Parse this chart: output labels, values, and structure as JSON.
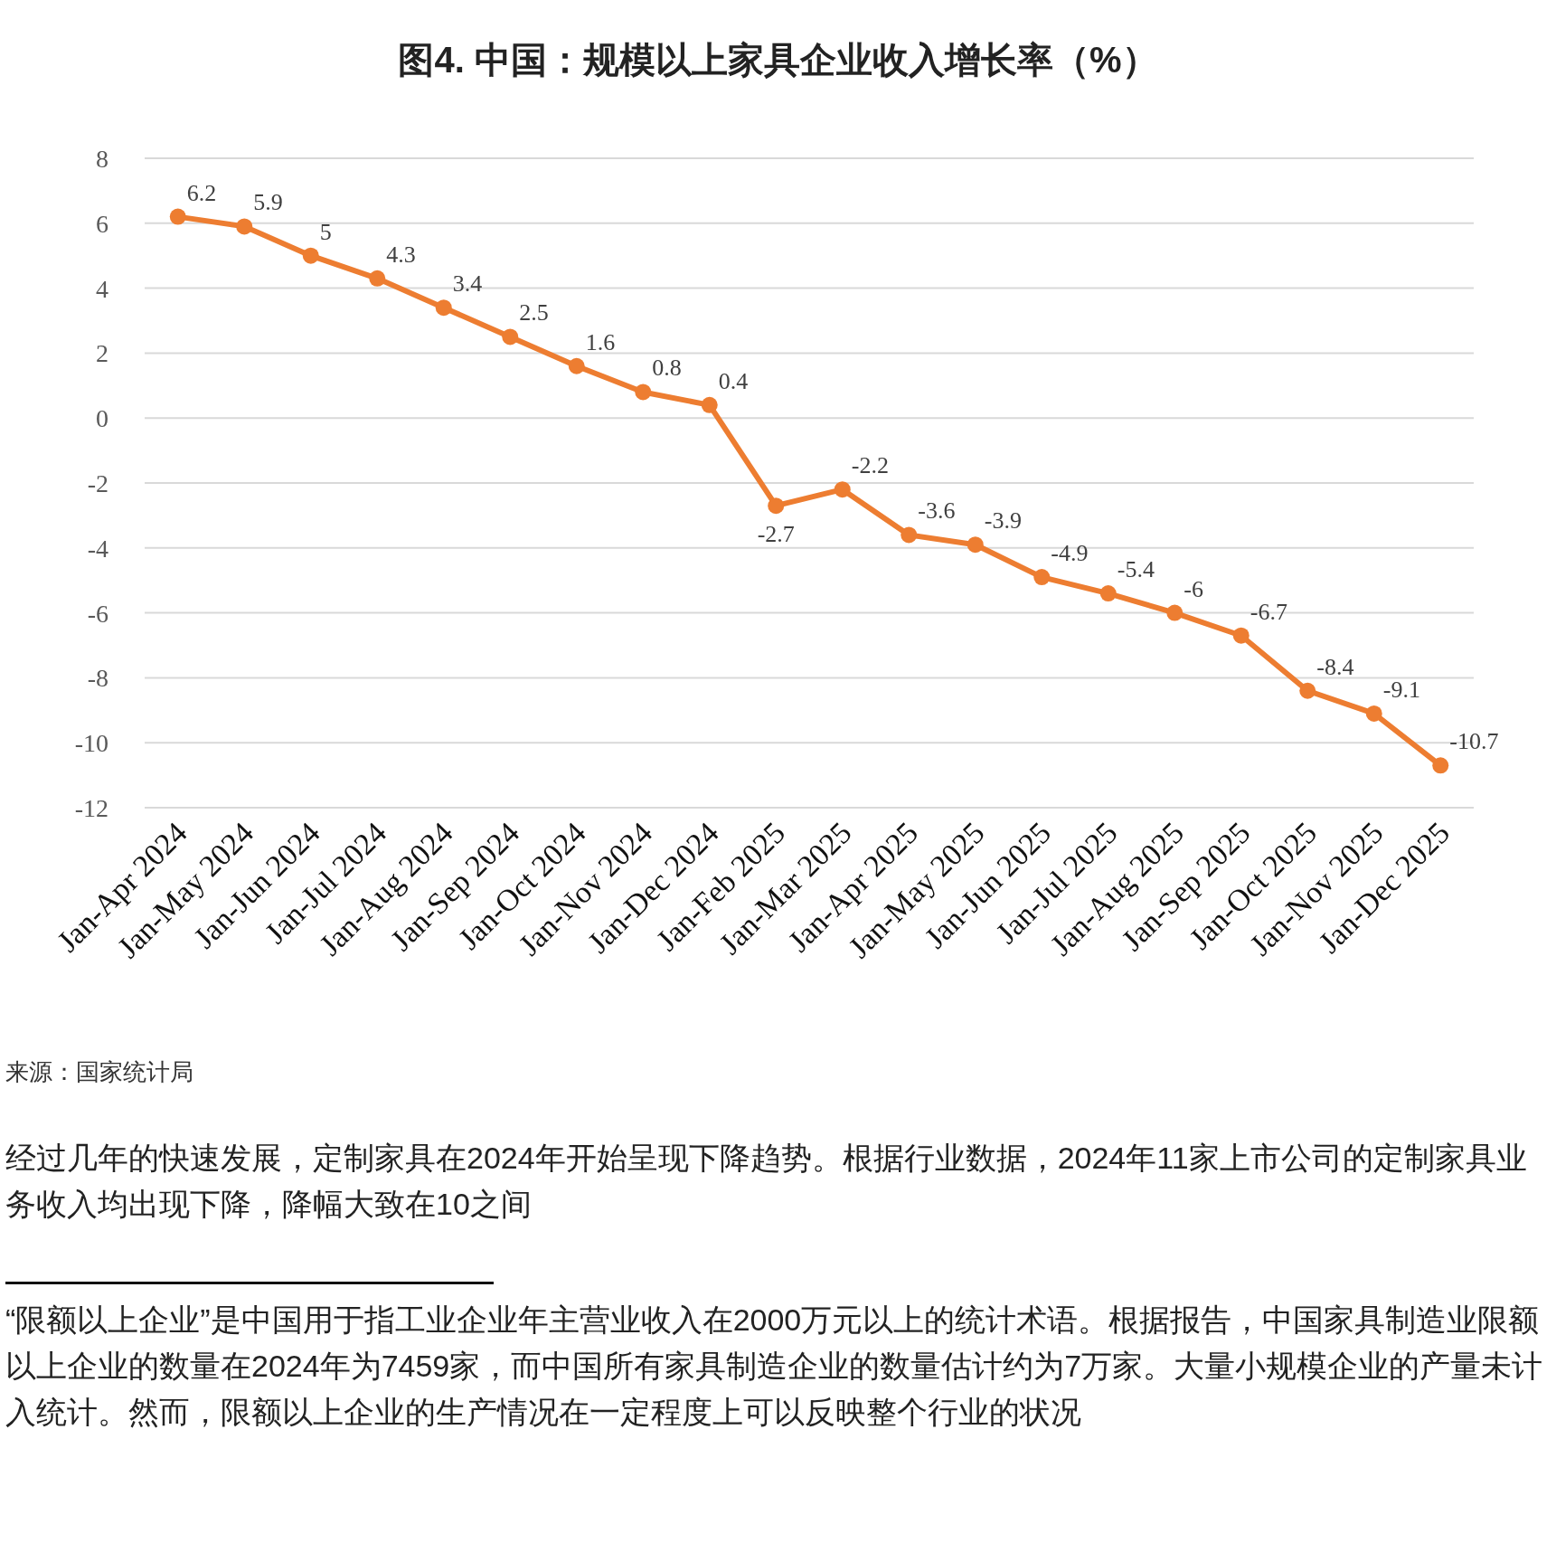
{
  "chart_data": {
    "type": "line",
    "title": "图4. 中国：规模以上家具企业收入增长率（%）",
    "categories": [
      "Jan-Apr 2024",
      "Jan-May 2024",
      "Jan-Jun 2024",
      "Jan-Jul 2024",
      "Jan-Aug 2024",
      "Jan-Sep 2024",
      "Jan-Oct 2024",
      "Jan-Nov 2024",
      "Jan-Dec 2024",
      "Jan-Feb 2025",
      "Jan-Mar 2025",
      "Jan-Apr 2025",
      "Jan-May 2025",
      "Jan-Jun 2025",
      "Jan-Jul 2025",
      "Jan-Aug 2025",
      "Jan-Sep 2025",
      "Jan-Oct 2025",
      "Jan-Nov 2025",
      "Jan-Dec 2025"
    ],
    "series": [
      {
        "color": "#ed7d31",
        "values": [
          6.2,
          5.9,
          5,
          4.3,
          3.4,
          2.5,
          1.6,
          0.8,
          0.4,
          -2.7,
          -2.2,
          -3.6,
          -3.9,
          -4.9,
          -5.4,
          -6,
          -6.7,
          -8.4,
          -9.1,
          -10.7
        ]
      }
    ],
    "ylim": [
      -12,
      8
    ],
    "yticks": [
      -12,
      -10,
      -8,
      -6,
      -4,
      -2,
      0,
      2,
      4,
      6,
      8
    ],
    "grid": "y",
    "marker": "circle",
    "data_labels": true,
    "annotations": [
      "来源：国家统计局",
      "经过几年的快速发展，定制家具在2024年开始呈现下降趋势。根据行业数据，2024年11家上市公司的定制家具业务收入均出现下降，降幅大致在10之间",
      "“限额以上企业”是中国用于指工业企业年主营业收入在2000万元以上的统计术语。根据报告，中国家具制造业限额以上企业的数量在2024年为7459家，而中国所有家具制造企业的数量估计约为7万家。大量小规模企业的产量未计入统计。然而，限额以上企业的生产情况在一定程度上可以反映整个行业的状况"
    ]
  }
}
